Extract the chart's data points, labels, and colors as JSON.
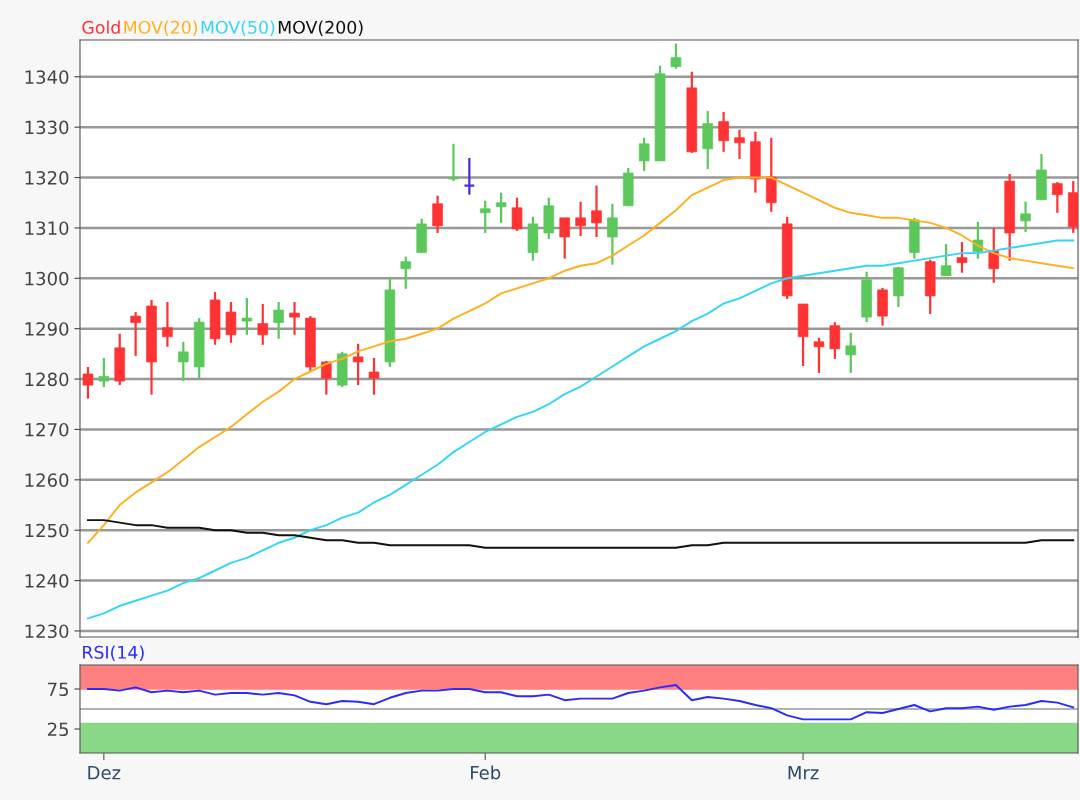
{
  "chart_data": [
    {
      "type": "candlestick",
      "categories": [
        null,
        null,
        null,
        null,
        null,
        null,
        null,
        null,
        null,
        null,
        null,
        null,
        null,
        null,
        null,
        null,
        null,
        null,
        null,
        null,
        null,
        null,
        null,
        null,
        null,
        null,
        null,
        null,
        null,
        null,
        null,
        null,
        null,
        null,
        null,
        null,
        null,
        null,
        null,
        null,
        null,
        null,
        null,
        null,
        null,
        null,
        null,
        null,
        null,
        null,
        null,
        null,
        null,
        null,
        null,
        null,
        null,
        null,
        null,
        null,
        null,
        null,
        null
      ],
      "ylim": [
        1228.8,
        1347.3
      ],
      "yticks": [
        1230,
        1240,
        1250,
        1260,
        1270,
        1280,
        1290,
        1300,
        1310,
        1320,
        1330,
        1340
      ],
      "grid": "y",
      "tick_labels": "y",
      "series": [
        {
          "type": "candlestick",
          "name": "Gold",
          "color": "#ff3333",
          "ohlc": [
            [
              1281,
              1282.4,
              1276.1,
              1278.8
            ],
            [
              1279.6,
              1284.2,
              1278.4,
              1280.5
            ],
            [
              1286.2,
              1289,
              1278.8,
              1279.6
            ],
            [
              1292.5,
              1293.3,
              1284.6,
              1291.2
            ],
            [
              1294.5,
              1295.7,
              1276.9,
              1283.4
            ],
            [
              1290.2,
              1295.3,
              1286.4,
              1288.4
            ],
            [
              1283.4,
              1287.4,
              1279.6,
              1285.4
            ],
            [
              1282.4,
              1292.1,
              1280.2,
              1291.3
            ],
            [
              1295.7,
              1297.3,
              1286.8,
              1288
            ],
            [
              1293.3,
              1295.3,
              1287.2,
              1288.8
            ],
            [
              1291.5,
              1296.1,
              1288.8,
              1292.1
            ],
            [
              1291,
              1294.9,
              1286.8,
              1288.8
            ],
            [
              1291.2,
              1295.3,
              1288,
              1293.7
            ],
            [
              1293.1,
              1295.3,
              1288.8,
              1292.3
            ],
            [
              1292.1,
              1292.5,
              1281.4,
              1282.4
            ],
            [
              1283.4,
              1283.6,
              1276.9,
              1280.2
            ],
            [
              1278.8,
              1285.4,
              1278.4,
              1285
            ],
            [
              1284.4,
              1287,
              1278.8,
              1283.4
            ],
            [
              1281.4,
              1284.2,
              1276.9,
              1280.2
            ],
            [
              1283.4,
              1300.3,
              1282.4,
              1297.7
            ],
            [
              1301.9,
              1304.3,
              1297.9,
              1303.3
            ],
            [
              1305.1,
              1311.8,
              1305.1,
              1310.8
            ],
            [
              1314.8,
              1316.4,
              1309,
              1310.4
            ],
            [
              1319.7,
              1326.7,
              1319.3,
              1319.9
            ],
            [
              1318.4,
              1323.9,
              1316.6,
              1318.4
            ],
            [
              1313,
              1315.4,
              1309,
              1313.8
            ],
            [
              1314.2,
              1317,
              1311,
              1315
            ],
            [
              1314,
              1316,
              1309.4,
              1309.8
            ],
            [
              1305.1,
              1312.2,
              1303.5,
              1310.8
            ],
            [
              1309,
              1316,
              1307.8,
              1314.4
            ],
            [
              1312,
              1312,
              1303.9,
              1308.2
            ],
            [
              1312,
              1315.2,
              1308.4,
              1310.4
            ],
            [
              1313.4,
              1318.4,
              1308.2,
              1311
            ],
            [
              1308.2,
              1314.8,
              1302.7,
              1312
            ],
            [
              1314.4,
              1321.9,
              1314.4,
              1320.9
            ],
            [
              1323.3,
              1327.9,
              1321.3,
              1326.7
            ],
            [
              1323.3,
              1342.2,
              1323.3,
              1340.6
            ],
            [
              1342,
              1346.6,
              1341.6,
              1343.8
            ],
            [
              1337.8,
              1341,
              1324.9,
              1325.1
            ],
            [
              1325.7,
              1333.2,
              1321.7,
              1330.7
            ],
            [
              1331.1,
              1333,
              1325.1,
              1327.3
            ],
            [
              1327.9,
              1329.5,
              1323.7,
              1326.9
            ],
            [
              1327.1,
              1329.1,
              1317,
              1319.7
            ],
            [
              1320.1,
              1327.9,
              1313.2,
              1315
            ],
            [
              1310.8,
              1312.2,
              1295.9,
              1296.5
            ],
            [
              1294.9,
              1294.9,
              1282.6,
              1288.4
            ],
            [
              1287.4,
              1288.2,
              1281.2,
              1286.4
            ],
            [
              1290.6,
              1291.3,
              1284,
              1286
            ],
            [
              1284.8,
              1289.2,
              1281.2,
              1286.6
            ],
            [
              1292.3,
              1301.3,
              1291.3,
              1299.7
            ],
            [
              1297.7,
              1298.1,
              1290.6,
              1292.5
            ],
            [
              1296.5,
              1302.3,
              1294.3,
              1302.1
            ],
            [
              1305.1,
              1312,
              1303.9,
              1311.6
            ],
            [
              1303.3,
              1303.7,
              1292.9,
              1296.5
            ],
            [
              1300.5,
              1306.8,
              1300.5,
              1302.5
            ],
            [
              1304.1,
              1307.2,
              1301.1,
              1303.1
            ],
            [
              1305.3,
              1311.2,
              1303.9,
              1307.6
            ],
            [
              1305.4,
              1310,
              1299.1,
              1301.9
            ],
            [
              1319.3,
              1320.7,
              1303.5,
              1309
            ],
            [
              1311.4,
              1315.2,
              1309.2,
              1312.8
            ],
            [
              1315.6,
              1324.7,
              1315.6,
              1321.5
            ],
            [
              1318.8,
              1319.1,
              1313,
              1316.6
            ],
            [
              1317,
              1319.3,
              1309,
              1310.2
            ]
          ],
          "colors": [
            "#ff3333",
            "#5cc85c",
            "#ff3333",
            "#ff3333",
            "#ff3333",
            "#ff3333",
            "#5cc85c",
            "#5cc85c",
            "#ff3333",
            "#ff3333",
            "#5cc85c",
            "#ff3333",
            "#5cc85c",
            "#ff3333",
            "#ff3333",
            "#ff3333",
            "#5cc85c",
            "#ff3333",
            "#ff3333",
            "#5cc85c",
            "#5cc85c",
            "#5cc85c",
            "#ff3333",
            "#5cc85c",
            "#4b2bd6",
            "#5cc85c",
            "#5cc85c",
            "#ff3333",
            "#5cc85c",
            "#5cc85c",
            "#ff3333",
            "#ff3333",
            "#ff3333",
            "#5cc85c",
            "#5cc85c",
            "#5cc85c",
            "#5cc85c",
            "#5cc85c",
            "#ff3333",
            "#5cc85c",
            "#ff3333",
            "#ff3333",
            "#ff3333",
            "#ff3333",
            "#ff3333",
            "#ff3333",
            "#ff3333",
            "#ff3333",
            "#5cc85c",
            "#5cc85c",
            "#ff3333",
            "#5cc85c",
            "#5cc85c",
            "#ff3333",
            "#5cc85c",
            "#ff3333",
            "#5cc85c",
            "#ff3333",
            "#ff3333",
            "#5cc85c",
            "#5cc85c",
            "#ff3333",
            "#ff3333"
          ]
        },
        {
          "type": "line",
          "name": "MOV(20)",
          "color": "#ffb020",
          "values": [
            1247.5,
            1251,
            1255,
            1257.5,
            1259.5,
            1261.5,
            1264,
            1266.5,
            1268.5,
            1270.5,
            1273,
            1275.5,
            1277.5,
            1280,
            1281.5,
            1283,
            1284,
            1285.5,
            1286.5,
            1287.5,
            1288,
            1289,
            1290,
            1292,
            1293.5,
            1295,
            1297,
            1298,
            1299,
            1300,
            1301.5,
            1302.5,
            1303,
            1304.5,
            1306.5,
            1308.5,
            1311,
            1313.5,
            1316.5,
            1318,
            1319.5,
            1320,
            1320,
            1320,
            1318.5,
            1317,
            1315.5,
            1314,
            1313,
            1312.5,
            1312,
            1312,
            1311.5,
            1311,
            1310,
            1308.5,
            1306.5,
            1305,
            1304,
            1303.5,
            1303,
            1302.5,
            1302
          ]
        },
        {
          "type": "line",
          "name": "MOV(50)",
          "color": "#33d6f5",
          "values": [
            1232.5,
            1233.5,
            1235,
            1236,
            1237,
            1238,
            1239.5,
            1240.5,
            1242,
            1243.5,
            1244.5,
            1246,
            1247.5,
            1248.5,
            1250,
            1251,
            1252.5,
            1253.5,
            1255.5,
            1257,
            1259,
            1261,
            1263,
            1265.5,
            1267.5,
            1269.5,
            1271,
            1272.5,
            1273.5,
            1275,
            1277,
            1278.5,
            1280.5,
            1282.5,
            1284.5,
            1286.5,
            1288,
            1289.5,
            1291.5,
            1293,
            1295,
            1296,
            1297.5,
            1299,
            1300,
            1300.5,
            1301,
            1301.5,
            1302,
            1302.5,
            1302.5,
            1303,
            1303.5,
            1304,
            1304.5,
            1305,
            1305,
            1305.5,
            1306,
            1306.5,
            1307,
            1307.5,
            1307.5
          ]
        },
        {
          "type": "line",
          "name": "MOV(200)",
          "color": "#111111",
          "values": [
            1252,
            1252,
            1251.5,
            1251,
            1251,
            1250.5,
            1250.5,
            1250.5,
            1250,
            1250,
            1249.5,
            1249.5,
            1249,
            1249,
            1248.5,
            1248,
            1248,
            1247.5,
            1247.5,
            1247,
            1247,
            1247,
            1247,
            1247,
            1247,
            1246.5,
            1246.5,
            1246.5,
            1246.5,
            1246.5,
            1246.5,
            1246.5,
            1246.5,
            1246.5,
            1246.5,
            1246.5,
            1246.5,
            1246.5,
            1247,
            1247,
            1247.5,
            1247.5,
            1247.5,
            1247.5,
            1247.5,
            1247.5,
            1247.5,
            1247.5,
            1247.5,
            1247.5,
            1247.5,
            1247.5,
            1247.5,
            1247.5,
            1247.5,
            1247.5,
            1247.5,
            1247.5,
            1247.5,
            1247.5,
            1248,
            1248,
            1248
          ]
        }
      ]
    },
    {
      "type": "line",
      "categories": [
        null,
        "Dez",
        null,
        null,
        null,
        null,
        null,
        null,
        null,
        null,
        null,
        null,
        null,
        null,
        null,
        null,
        null,
        null,
        null,
        null,
        null,
        null,
        null,
        null,
        null,
        "Feb",
        null,
        null,
        null,
        null,
        null,
        null,
        null,
        null,
        null,
        null,
        null,
        null,
        null,
        null,
        null,
        null,
        null,
        null,
        null,
        "Mrz",
        null,
        null,
        null,
        null,
        null,
        null,
        null,
        null,
        null,
        null,
        null,
        null,
        null,
        null,
        null,
        null,
        null
      ],
      "ylim": [
        -5,
        105
      ],
      "yticks": [
        25,
        75
      ],
      "grid": false,
      "bands": [
        {
          "axis": "y",
          "from": 75,
          "to": 105,
          "color": "#ff8080"
        },
        {
          "axis": "y",
          "from": -5,
          "to": 32,
          "color": "#88d888"
        }
      ],
      "ref_lines": [
        {
          "axis": "y",
          "value": 50,
          "color": "#999999"
        }
      ],
      "series": [
        {
          "name": "RSI(14)",
          "color": "#2b2bff",
          "values": [
            75,
            75,
            73,
            77,
            71,
            73,
            71,
            73,
            68,
            70,
            70,
            68,
            70,
            67,
            59,
            56,
            60,
            59,
            56,
            64,
            70,
            73,
            73,
            75,
            75,
            71,
            71,
            66,
            66,
            68,
            61,
            63,
            63,
            63,
            70,
            73,
            77,
            80,
            61,
            65,
            63,
            60,
            55,
            51,
            42,
            37,
            37,
            37,
            37,
            46,
            45,
            50,
            55,
            47,
            51,
            51,
            53,
            49,
            53,
            55,
            60,
            58,
            52
          ]
        }
      ]
    }
  ]
}
